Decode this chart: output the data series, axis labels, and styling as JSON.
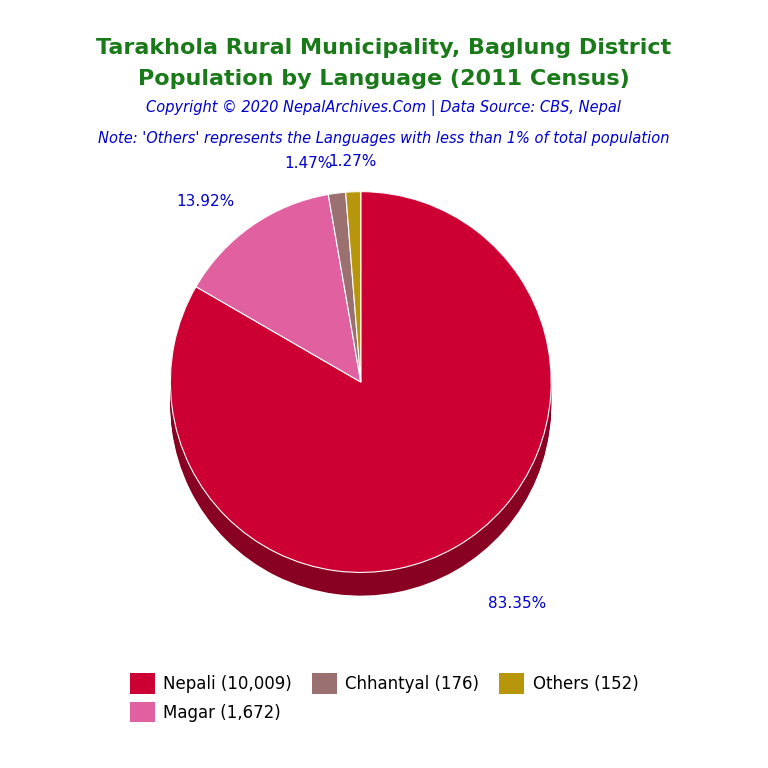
{
  "title_line1": "Tarakhola Rural Municipality, Baglung District",
  "title_line2": "Population by Language (2011 Census)",
  "title_color": "#1a7a1a",
  "copyright_text": "Copyright © 2020 NepalArchives.Com | Data Source: CBS, Nepal",
  "copyright_color": "#0000cc",
  "note_text": "Note: 'Others' represents the Languages with less than 1% of total population",
  "note_color": "#0000cc",
  "labels": [
    "Nepali (10,009)",
    "Magar (1,672)",
    "Chhantyal (176)",
    "Others (152)"
  ],
  "values": [
    10009,
    1672,
    176,
    152
  ],
  "percentages": [
    "83.35%",
    "13.92%",
    "1.47%",
    "1.27%"
  ],
  "colors": [
    "#cc0033",
    "#e060a0",
    "#9b7070",
    "#b8960c"
  ],
  "shadow_colors": [
    "#880022",
    "#a03060",
    "#5a3030",
    "#7a6008"
  ],
  "background_color": "#ffffff",
  "legend_label_color": "#000000",
  "pct_label_color": "#0000cc",
  "startangle": 90,
  "shadow_depth": 0.1
}
